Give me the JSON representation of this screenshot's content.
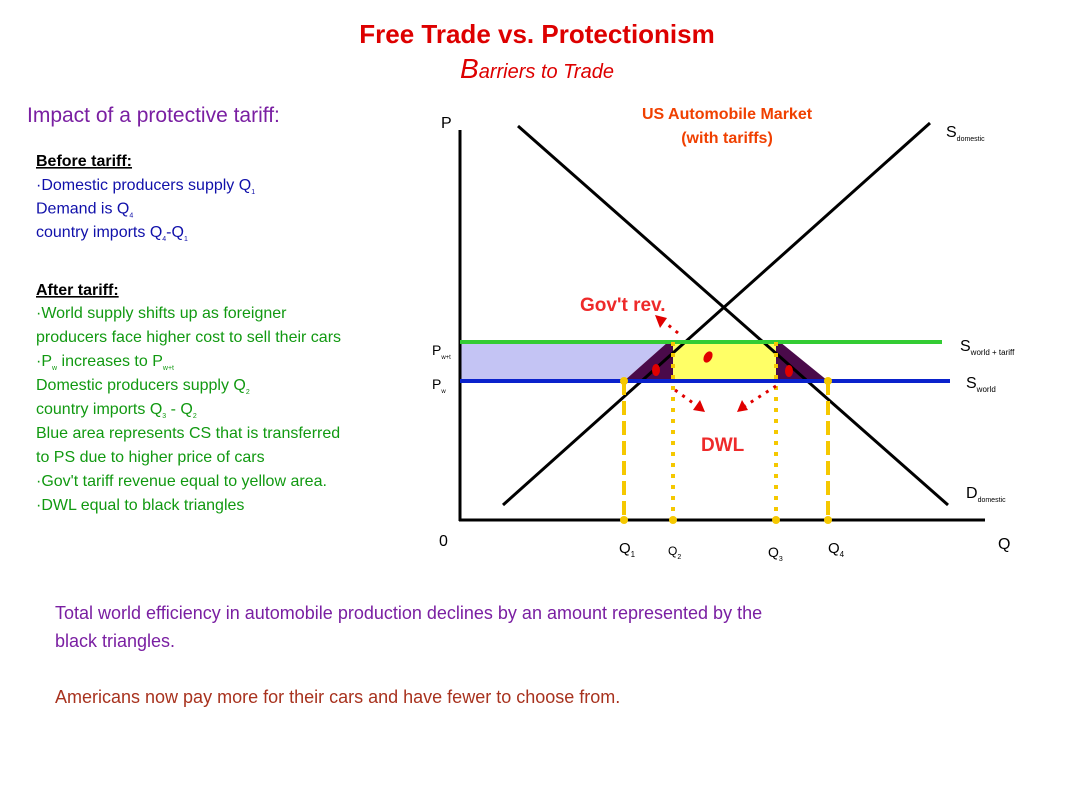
{
  "header": {
    "title": "Free Trade vs. Protectionism",
    "subtitle": [
      "B",
      "arriers to Trade"
    ]
  },
  "impact": "Impact of a protective tariff:",
  "before": {
    "heading": "Before tariff:",
    "lines": [
      [
        "·Domestic producers supply Q",
        "1"
      ],
      [
        "Demand is Q",
        "4"
      ],
      [
        "country imports Q",
        "4",
        "-Q",
        "1"
      ]
    ]
  },
  "after": {
    "heading": "After tariff:",
    "lines": [
      [
        "·World supply shifts up as foreigner"
      ],
      [
        "producers face higher cost to sell their cars"
      ],
      [
        "·P",
        "w",
        " increases to P",
        "w+t"
      ],
      [
        "Domestic producers supply Q",
        "2"
      ],
      [
        "country imports Q",
        "3",
        " - Q",
        "2"
      ],
      [
        "Blue area represents CS that is transferred"
      ],
      [
        "to PS due to higher price of cars"
      ],
      [
        "·Gov't tariff revenue equal to yellow area."
      ],
      [
        "·DWL equal to black triangles"
      ]
    ]
  },
  "diagram": {
    "title": [
      "US Automobile Market",
      "(with tariffs)"
    ],
    "y_axis": "P",
    "x_axis": "Q",
    "origin": "0",
    "labels": {
      "s_domestic": [
        "S",
        "domestic"
      ],
      "s_world_tariff": [
        "S",
        "world + tariff"
      ],
      "s_world": [
        "S",
        "world"
      ],
      "d_domestic": [
        "D",
        "domestic"
      ],
      "pwt": [
        "P",
        "w+t"
      ],
      "pw": [
        "P",
        "w"
      ],
      "q1": [
        "Q",
        "1"
      ],
      "q2": [
        "Q",
        "2"
      ],
      "q3": [
        "Q",
        "3"
      ],
      "q4": [
        "Q",
        "4"
      ]
    },
    "gov_rev": "Gov't rev.",
    "dwl": "DWL"
  },
  "footer": [
    "Total world efficiency in automobile production declines by an amount represented by the",
    "black triangles.",
    "Americans now pay more for their cars and have fewer to choose from."
  ]
}
